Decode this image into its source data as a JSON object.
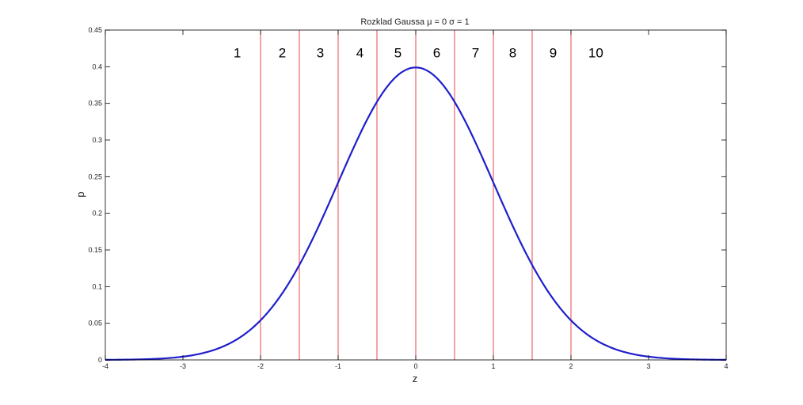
{
  "chart_data": {
    "type": "line",
    "title": "Rozklad Gaussa μ = 0 σ = 1",
    "xlabel": "z",
    "ylabel": "p",
    "xlim": [
      -4,
      4
    ],
    "ylim": [
      0,
      0.45
    ],
    "xticks": [
      "-4",
      "-3",
      "-2",
      "-1",
      "0",
      "1",
      "2",
      "3",
      "4"
    ],
    "yticks": [
      "0",
      "0.05",
      "0.1",
      "0.15",
      "0.2",
      "0.25",
      "0.3",
      "0.35",
      "0.4",
      "0.45"
    ],
    "grid": false,
    "legend": "none",
    "series": [
      {
        "color": "#1f1fcc",
        "mu": 0,
        "sigma": 1,
        "x": [
          -4,
          -3.5,
          -3,
          -2.5,
          -2,
          -1.5,
          -1,
          -0.5,
          0,
          0.5,
          1,
          1.5,
          2,
          2.5,
          3,
          3.5,
          4
        ],
        "y": [
          0.0001,
          0.0009,
          0.0044,
          0.0175,
          0.054,
          0.1295,
          0.242,
          0.3521,
          0.3989,
          0.3521,
          0.242,
          0.1295,
          0.054,
          0.0175,
          0.0044,
          0.0009,
          0.0001
        ]
      }
    ],
    "vlines": {
      "color": "#e84a4a",
      "x": [
        -2,
        -1.5,
        -1,
        -0.5,
        0,
        0.5,
        1,
        1.5,
        2
      ]
    },
    "regions": [
      {
        "label": "1",
        "x": -2.3
      },
      {
        "label": "2",
        "x": -1.72
      },
      {
        "label": "3",
        "x": -1.23
      },
      {
        "label": "4",
        "x": -0.72
      },
      {
        "label": "5",
        "x": -0.23
      },
      {
        "label": "6",
        "x": 0.27
      },
      {
        "label": "7",
        "x": 0.77
      },
      {
        "label": "8",
        "x": 1.25
      },
      {
        "label": "9",
        "x": 1.77
      },
      {
        "label": "10",
        "x": 2.32
      }
    ],
    "region_label_y": 0.413
  }
}
